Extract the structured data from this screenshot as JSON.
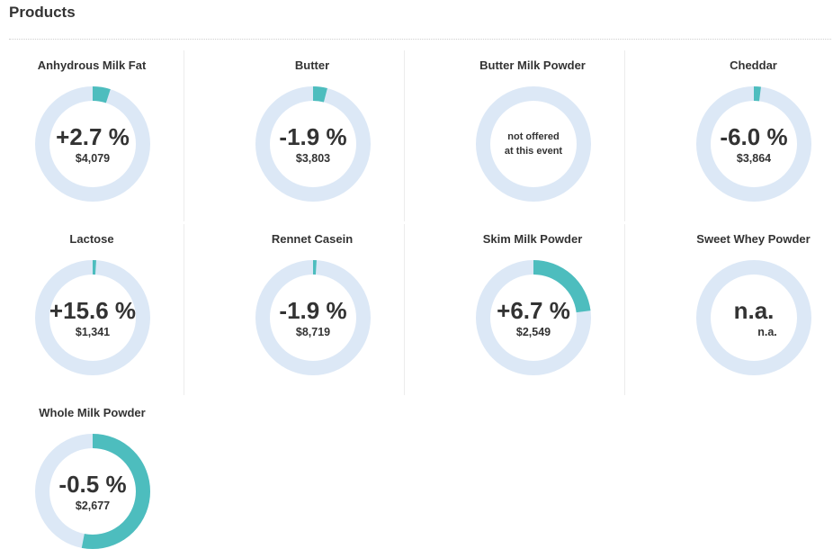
{
  "page": {
    "title": "Products"
  },
  "colors": {
    "track": "#dce8f6",
    "accent": "#4dbdbe"
  },
  "products": [
    {
      "name": "Anhydrous Milk Fat",
      "change": "+2.7 %",
      "price": "$4,079",
      "fill": 0.05
    },
    {
      "name": "Butter",
      "change": "-1.9 %",
      "price": "$3,803",
      "fill": 0.04
    },
    {
      "name": "Butter Milk Powder",
      "note": "not offered\nat this event",
      "fill": 0
    },
    {
      "name": "Cheddar",
      "change": "-6.0 %",
      "price": "$3,864",
      "fill": 0.02
    },
    {
      "name": "Lactose",
      "change": "+15.6 %",
      "price": "$1,341",
      "fill": 0.01
    },
    {
      "name": "Rennet Casein",
      "change": "-1.9 %",
      "price": "$8,719",
      "fill": 0.01
    },
    {
      "name": "Skim Milk Powder",
      "change": "+6.7 %",
      "price": "$2,549",
      "fill": 0.23
    },
    {
      "name": "Sweet Whey Powder",
      "change": "n.a.",
      "price": "n.a.",
      "fill": 0
    },
    {
      "name": "Whole Milk Powder",
      "change": "-0.5 %",
      "price": "$2,677",
      "fill": 0.53
    }
  ]
}
